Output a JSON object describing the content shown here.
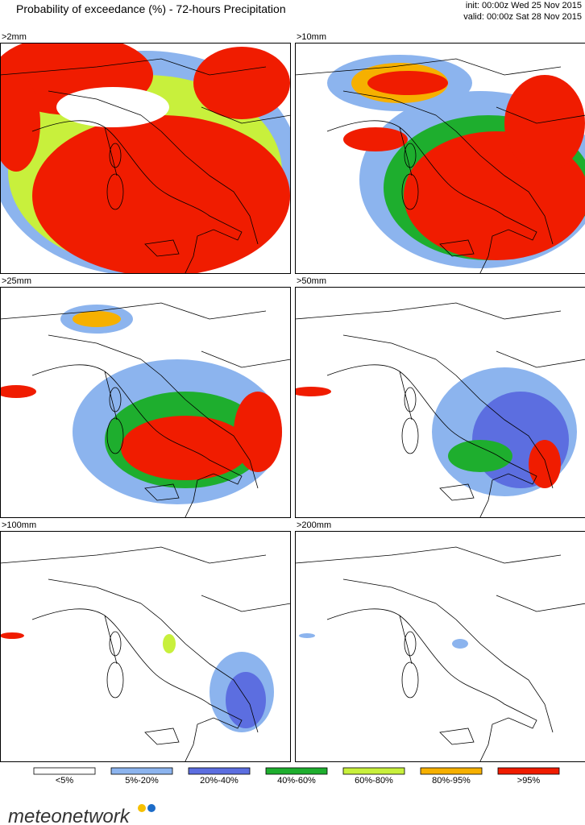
{
  "header": {
    "title": "Probability of exceedance (%) - 72-hours Precipitation",
    "init": "init: 00:00z Wed 25 Nov 2015",
    "valid": "valid: 00:00z Sat 28 Nov 2015"
  },
  "panels": [
    {
      "label": ">2mm"
    },
    {
      "label": ">10mm"
    },
    {
      "label": ">25mm"
    },
    {
      "label": ">50mm"
    },
    {
      "label": ">100mm"
    },
    {
      "label": ">200mm"
    }
  ],
  "legend": [
    {
      "label": "<5%",
      "color": "#ffffff"
    },
    {
      "label": "5%-20%",
      "color": "#8cb4ee"
    },
    {
      "label": "20%-40%",
      "color": "#5c6ee0"
    },
    {
      "label": "40%-60%",
      "color": "#1eae2e"
    },
    {
      "label": "60%-80%",
      "color": "#c8f03c"
    },
    {
      "label": "80%-95%",
      "color": "#f6b000"
    },
    {
      "label": ">95%",
      "color": "#f01c00"
    }
  ],
  "logo": {
    "text": "meteonetwork"
  }
}
